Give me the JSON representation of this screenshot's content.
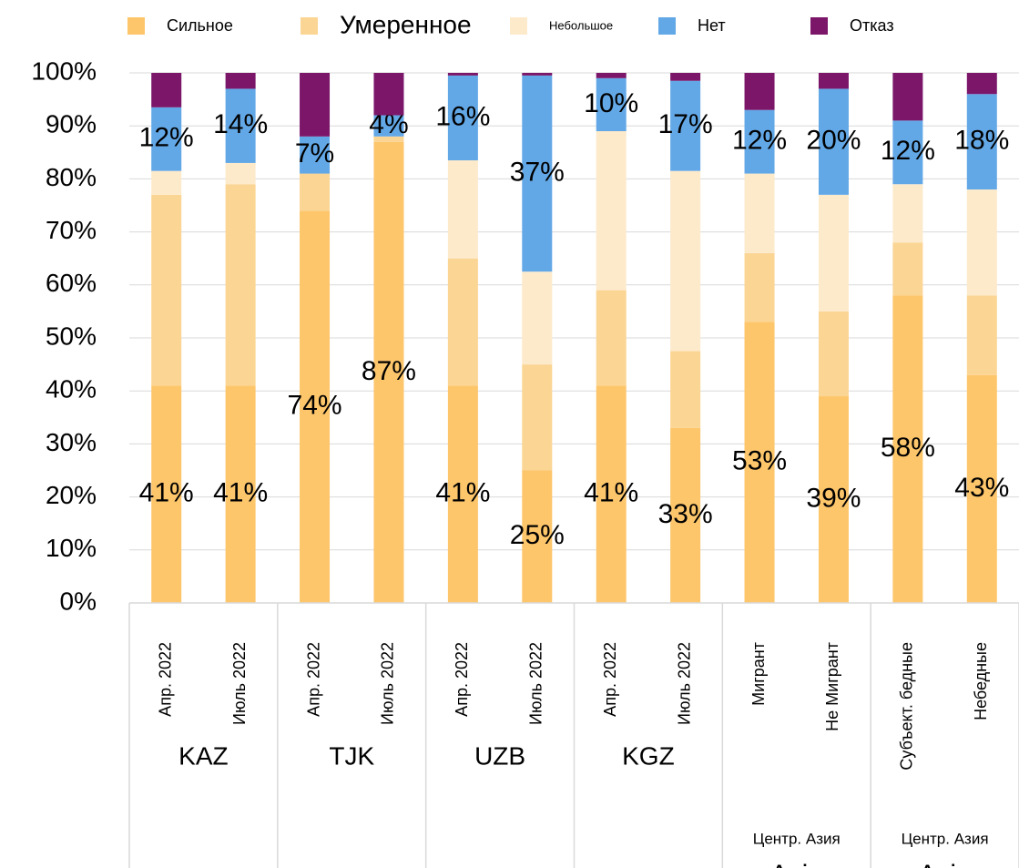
{
  "chart_data": {
    "type": "stacked_bar",
    "categories": [
      "Апр. 2022",
      "Июль 2022",
      "Апр. 2022",
      "Июль 2022",
      "Апр. 2022",
      "Июль 2022",
      "Апр. 2022",
      "Июль 2022",
      "Мигрант",
      "Не Мигрант",
      "Субъект. бедные",
      "Небедные"
    ],
    "groups": [
      {
        "label": "KAZ",
        "size": 2
      },
      {
        "label": "TJK",
        "size": 2
      },
      {
        "label": "UZB",
        "size": 2
      },
      {
        "label": "KGZ",
        "size": 2
      },
      {
        "label": "Центр. Азия",
        "sublabel": "Asia",
        "size": 2
      },
      {
        "label": "Центр. Азия",
        "sublabel": "Asia",
        "size": 2
      }
    ],
    "series": [
      {
        "name": "Сильное",
        "color": "#fdc66b",
        "values": [
          41,
          41,
          74,
          87,
          41,
          25,
          41,
          33,
          53,
          39,
          58,
          43
        ],
        "value_labels": [
          "41%",
          "41%",
          "74%",
          "87%",
          "41%",
          "25%",
          "41%",
          "33%",
          "53%",
          "39%",
          "58%",
          "43%"
        ]
      },
      {
        "name": "Умеренное",
        "color": "#fbd594",
        "values": [
          36,
          38,
          7,
          1,
          24,
          20,
          18,
          14.5,
          13,
          16,
          10,
          15
        ]
      },
      {
        "name": "Небольшое",
        "color": "#fdeacb",
        "values": [
          4.5,
          4,
          0,
          0,
          18.5,
          17.5,
          30,
          34,
          15,
          22,
          11,
          20
        ]
      },
      {
        "name": "Нет",
        "color": "#63a8e6",
        "values": [
          12,
          14,
          7,
          4,
          16,
          37,
          10,
          17,
          12,
          20,
          12,
          18
        ],
        "value_labels": [
          "12%",
          "14%",
          "7%",
          "4%",
          "16%",
          "37%",
          "10%",
          "17%",
          "12%",
          "20%",
          "12%",
          "18%"
        ]
      },
      {
        "name": "Отказ",
        "color": "#7b1669",
        "values": [
          6.5,
          3,
          12,
          8,
          0.5,
          0.5,
          1,
          1.5,
          7,
          3,
          9,
          4
        ]
      }
    ],
    "ylim": [
      0,
      100
    ],
    "yticks": [
      {
        "value": 0,
        "label": "0%"
      },
      {
        "value": 10,
        "label": "10%"
      },
      {
        "value": 20,
        "label": "20%"
      },
      {
        "value": 30,
        "label": "30%"
      },
      {
        "value": 40,
        "label": "40%"
      },
      {
        "value": 50,
        "label": "50%"
      },
      {
        "value": 60,
        "label": "60%"
      },
      {
        "value": 70,
        "label": "70%"
      },
      {
        "value": 80,
        "label": "80%"
      },
      {
        "value": 90,
        "label": "90%"
      },
      {
        "value": 100,
        "label": "100%"
      }
    ],
    "grid": true
  }
}
